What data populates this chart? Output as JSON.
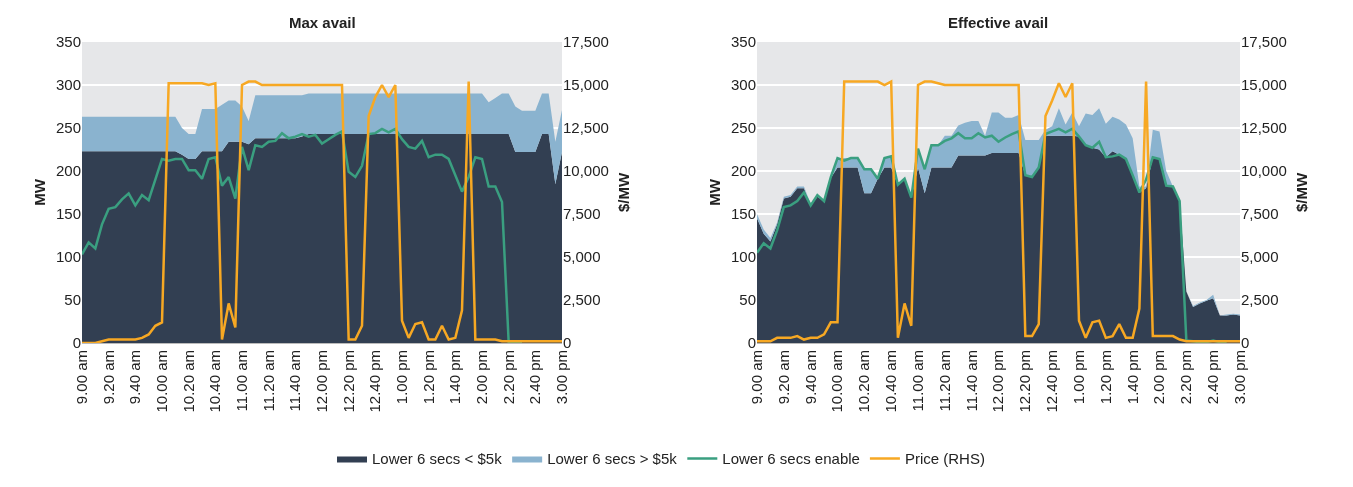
{
  "chart_data": [
    {
      "type": "area",
      "title": "Max avail",
      "ylabel": "MW",
      "y2label": "$/MW",
      "stacked": true,
      "grid": "y",
      "legend": "bottom",
      "categories": [
        "9.00 am",
        null,
        null,
        null,
        "9.20 am",
        null,
        null,
        null,
        "9.40 am",
        null,
        null,
        null,
        "10.00 am",
        null,
        null,
        null,
        "10.20 am",
        null,
        null,
        null,
        "10.40 am",
        null,
        null,
        null,
        "11.00 am",
        null,
        null,
        null,
        "11.20 am",
        null,
        null,
        null,
        "11.40 am",
        null,
        null,
        null,
        "12.00 pm",
        null,
        null,
        null,
        "12.20 pm",
        null,
        null,
        null,
        "12.40 pm",
        null,
        null,
        null,
        "1.00 pm",
        null,
        null,
        null,
        "1.20 pm",
        null,
        null,
        null,
        "1.40 pm",
        null,
        null,
        null,
        "2.00 pm",
        null,
        null,
        null,
        "2.20 pm",
        null,
        null,
        null,
        "2.40 pm",
        null,
        null,
        null,
        "3.00 pm"
      ],
      "ylim": [
        0,
        350
      ],
      "yticks": [
        0,
        50,
        100,
        150,
        200,
        250,
        300,
        350
      ],
      "y2lim": [
        0,
        17500
      ],
      "y2ticks": [
        0,
        {
          "value": 2500,
          "label": "2,500"
        },
        {
          "value": 5000,
          "label": "5,000"
        },
        {
          "value": 7500,
          "label": "7,500"
        },
        {
          "value": 10000,
          "label": "10,000"
        },
        {
          "value": 12500,
          "label": "12,500"
        },
        {
          "value": 15000,
          "label": "15,000"
        },
        {
          "value": 17500,
          "label": "17,500"
        }
      ],
      "series": [
        {
          "name": "Lower 6 secs < $5k",
          "color": "#323f52",
          "values": [
            223,
            223,
            223,
            223,
            223,
            223,
            223,
            223,
            223,
            223,
            223,
            223,
            223,
            223,
            223,
            219,
            214,
            214,
            223,
            223,
            223,
            223,
            234,
            234,
            234,
            231,
            238,
            238,
            238,
            238,
            238,
            238,
            238,
            240,
            243,
            243,
            243,
            243,
            243,
            243,
            243,
            243,
            243,
            243,
            243,
            243,
            243,
            243,
            243,
            243,
            243,
            243,
            243,
            243,
            243,
            243,
            243,
            243,
            243,
            243,
            243,
            243,
            243,
            243,
            243,
            222,
            222,
            222,
            222,
            243,
            243,
            185,
            222
          ]
        },
        {
          "name": "Lower 6 secs > $5k",
          "color": "#8ab3cf",
          "values": [
            40,
            40,
            40,
            40,
            40,
            40,
            40,
            40,
            40,
            40,
            40,
            40,
            40,
            40,
            40,
            31,
            29,
            29,
            49,
            49,
            49,
            54,
            48,
            48,
            41,
            27,
            50,
            50,
            50,
            50,
            50,
            50,
            50,
            48,
            47,
            47,
            47,
            47,
            47,
            47,
            47,
            47,
            47,
            47,
            47,
            47,
            47,
            47,
            47,
            47,
            47,
            47,
            47,
            47,
            47,
            47,
            47,
            47,
            47,
            47,
            47,
            37,
            42,
            47,
            47,
            53,
            48,
            48,
            48,
            47,
            47,
            49,
            49
          ]
        },
        {
          "name": "Lower 6 secs enable",
          "type": "line",
          "color": "#3a9f80",
          "values": [
            103,
            117,
            110,
            138,
            156,
            158,
            167,
            174,
            160,
            172,
            166,
            190,
            214,
            212,
            214,
            214,
            201,
            201,
            191,
            214,
            216,
            183,
            193,
            168,
            228,
            201,
            230,
            228,
            234,
            235,
            244,
            238,
            240,
            243,
            240,
            242,
            232,
            237,
            242,
            246,
            199,
            193,
            206,
            243,
            244,
            249,
            245,
            249,
            237,
            228,
            226,
            235,
            216,
            219,
            219,
            214,
            195,
            176,
            193,
            216,
            214,
            182,
            182,
            164,
            1,
            0,
            0,
            null,
            null,
            null,
            null,
            null,
            null
          ]
        },
        {
          "name": "Price (RHS)",
          "type": "line",
          "axis": "y2",
          "color": "#f7a823",
          "values": [
            0,
            0,
            0,
            100,
            200,
            200,
            200,
            200,
            200,
            300,
            500,
            1000,
            1200,
            15100,
            15100,
            15100,
            15100,
            15100,
            15100,
            15000,
            15100,
            200,
            2300,
            900,
            15000,
            15200,
            15200,
            15000,
            15000,
            15000,
            15000,
            15000,
            15000,
            15000,
            15000,
            15000,
            15000,
            15000,
            15000,
            15000,
            200,
            200,
            1000,
            13200,
            14300,
            15000,
            14300,
            15000,
            1300,
            300,
            1100,
            1200,
            200,
            200,
            1000,
            200,
            300,
            1900,
            15200,
            200,
            200,
            200,
            200,
            100,
            100,
            100,
            100,
            100,
            100,
            100,
            100,
            100,
            100
          ]
        }
      ]
    },
    {
      "type": "area",
      "title": "Effective avail",
      "ylabel": "MW",
      "y2label": "$/MW",
      "stacked": true,
      "grid": "y",
      "legend": "bottom",
      "categories": [
        "9.00 am",
        null,
        null,
        null,
        "9.20 am",
        null,
        null,
        null,
        "9.40 am",
        null,
        null,
        null,
        "10.00 am",
        null,
        null,
        null,
        "10.20 am",
        null,
        null,
        null,
        "10.40 am",
        null,
        null,
        null,
        "11.00 am",
        null,
        null,
        null,
        "11.20 am",
        null,
        null,
        null,
        "11.40 am",
        null,
        null,
        null,
        "12.00 pm",
        null,
        null,
        null,
        "12.20 pm",
        null,
        null,
        null,
        "12.40 pm",
        null,
        null,
        null,
        "1.00 pm",
        null,
        null,
        null,
        "1.20 pm",
        null,
        null,
        null,
        "1.40 pm",
        null,
        null,
        null,
        "2.00 pm",
        null,
        null,
        null,
        "2.20 pm",
        null,
        null,
        null,
        "2.40 pm",
        null,
        null,
        null,
        "3.00 pm"
      ],
      "ylim": [
        0,
        350
      ],
      "yticks": [
        0,
        50,
        100,
        150,
        200,
        250,
        300,
        350
      ],
      "y2lim": [
        0,
        17500
      ],
      "y2ticks": [
        0,
        {
          "value": 2500,
          "label": "2,500"
        },
        {
          "value": 5000,
          "label": "5,000"
        },
        {
          "value": 7500,
          "label": "7,500"
        },
        {
          "value": 10000,
          "label": "10,000"
        },
        {
          "value": 12500,
          "label": "12,500"
        },
        {
          "value": 15000,
          "label": "15,000"
        },
        {
          "value": 17500,
          "label": "17,500"
        }
      ],
      "series": [
        {
          "name": "Lower 6 secs < $5k",
          "color": "#323f52",
          "values": [
            145,
            127,
            118,
            138,
            168,
            170,
            180,
            180,
            160,
            170,
            165,
            192,
            204,
            204,
            204,
            204,
            174,
            174,
            191,
            204,
            204,
            184,
            191,
            169,
            204,
            174,
            204,
            204,
            204,
            204,
            218,
            218,
            218,
            218,
            218,
            221,
            221,
            221,
            221,
            221,
            195,
            193,
            204,
            241,
            241,
            241,
            241,
            241,
            240,
            230,
            227,
            225,
            216,
            223,
            219,
            214,
            195,
            175,
            180,
            216,
            214,
            183,
            182,
            165,
            60,
            42,
            46,
            49,
            52,
            32,
            32,
            33,
            32
          ]
        },
        {
          "name": "Lower 6 secs > $5k",
          "color": "#8ab3cf",
          "values": [
            5,
            5,
            4,
            2,
            2,
            2,
            2,
            2,
            2,
            2,
            1,
            1,
            11,
            11,
            11,
            11,
            28,
            28,
            0,
            11,
            13,
            0,
            0,
            0,
            22,
            28,
            26,
            26,
            37,
            37,
            35,
            38,
            40,
            40,
            23,
            47,
            47,
            41,
            41,
            44,
            41,
            43,
            32,
            7,
            11,
            32,
            13,
            27,
            12,
            37,
            38,
            48,
            39,
            40,
            41,
            40,
            43,
            7,
            2,
            32,
            32,
            17,
            0,
            0,
            0,
            1,
            1,
            1,
            4,
            0,
            1,
            1,
            1
          ]
        },
        {
          "name": "Lower 6 secs enable",
          "type": "line",
          "color": "#3a9f80",
          "values": [
            105,
            116,
            110,
            131,
            158,
            160,
            165,
            175,
            160,
            172,
            165,
            193,
            215,
            212,
            215,
            215,
            202,
            202,
            191,
            215,
            217,
            184,
            191,
            169,
            226,
            202,
            230,
            230,
            235,
            238,
            244,
            238,
            238,
            244,
            239,
            241,
            234,
            239,
            243,
            246,
            195,
            193,
            204,
            243,
            246,
            249,
            245,
            249,
            240,
            230,
            227,
            234,
            216,
            217,
            219,
            214,
            195,
            175,
            190,
            216,
            214,
            183,
            182,
            165,
            3,
            2,
            1,
            1,
            3,
            1,
            0,
            null,
            null
          ]
        },
        {
          "name": "Price (RHS)",
          "type": "line",
          "axis": "y2",
          "color": "#f7a823",
          "values": [
            100,
            100,
            100,
            300,
            300,
            300,
            400,
            200,
            300,
            300,
            500,
            1200,
            1200,
            15200,
            15200,
            15200,
            15200,
            15200,
            15200,
            15000,
            15200,
            300,
            2300,
            1000,
            15000,
            15200,
            15200,
            15100,
            15000,
            15000,
            15000,
            15000,
            15000,
            15000,
            15000,
            15000,
            15000,
            15000,
            15000,
            15000,
            400,
            400,
            1100,
            13200,
            14100,
            15100,
            14300,
            15100,
            1300,
            300,
            1200,
            1300,
            300,
            400,
            1100,
            300,
            300,
            2000,
            15200,
            400,
            400,
            400,
            400,
            200,
            100,
            100,
            100,
            100,
            100,
            100,
            100,
            100,
            100
          ]
        }
      ]
    }
  ]
}
